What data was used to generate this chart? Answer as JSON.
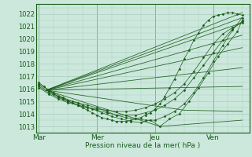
{
  "bg_color": "#cce8dc",
  "grid_color": "#aaccc0",
  "line_color": "#1a5c1a",
  "marker_color": "#1a5c1a",
  "xlabel": "Pression niveau de la mer( hPa )",
  "xtick_labels": [
    "Mar",
    "Mer",
    "Jeu",
    "Ven"
  ],
  "xtick_positions": [
    0,
    24,
    48,
    72
  ],
  "ylim": [
    1012.5,
    1022.8
  ],
  "yticks": [
    1013,
    1014,
    1015,
    1016,
    1017,
    1018,
    1019,
    1020,
    1021,
    1022
  ],
  "xlim": [
    -1,
    87
  ],
  "series": [
    {
      "x": [
        0,
        2,
        4,
        6,
        8,
        10,
        12,
        14,
        16,
        18,
        20,
        22,
        24,
        26,
        28,
        30,
        32,
        34,
        36,
        38,
        40,
        42,
        44,
        46,
        48,
        50,
        52,
        54,
        56,
        58,
        60,
        62,
        64,
        66,
        68,
        70,
        72,
        74,
        76,
        78,
        80,
        82,
        84
      ],
      "y": [
        1016.5,
        1016.2,
        1015.9,
        1015.6,
        1015.4,
        1015.2,
        1015.0,
        1014.9,
        1014.7,
        1014.5,
        1014.3,
        1014.1,
        1013.9,
        1013.7,
        1013.6,
        1013.5,
        1013.4,
        1013.4,
        1013.4,
        1013.5,
        1013.6,
        1013.7,
        1013.9,
        1014.1,
        1014.4,
        1014.8,
        1015.4,
        1016.1,
        1016.8,
        1017.6,
        1018.4,
        1019.1,
        1019.9,
        1020.5,
        1021.1,
        1021.5,
        1021.8,
        1021.9,
        1022.0,
        1022.1,
        1022.1,
        1022.0,
        1021.9
      ],
      "style": "dotted_marker"
    },
    {
      "x": [
        0,
        6,
        10,
        14,
        18,
        22,
        26,
        30,
        34,
        38,
        42,
        46,
        50,
        54,
        58,
        62,
        66,
        70,
        74,
        78,
        82,
        84
      ],
      "y": [
        1016.4,
        1015.7,
        1015.3,
        1015.0,
        1014.7,
        1014.4,
        1014.1,
        1013.8,
        1013.6,
        1013.4,
        1013.3,
        1013.5,
        1013.0,
        1013.6,
        1014.0,
        1015.0,
        1016.1,
        1017.3,
        1018.6,
        1019.6,
        1020.6,
        1021.5
      ],
      "style": "dotted_marker"
    },
    {
      "x": [
        0,
        4,
        8,
        12,
        16,
        20,
        24,
        28,
        32,
        36,
        40,
        44,
        48,
        52,
        56,
        60,
        64,
        68,
        72,
        76,
        80,
        84
      ],
      "y": [
        1016.3,
        1015.8,
        1015.4,
        1015.1,
        1014.9,
        1014.7,
        1014.5,
        1014.2,
        1013.9,
        1013.7,
        1013.6,
        1013.5,
        1013.5,
        1013.8,
        1014.2,
        1014.8,
        1015.7,
        1016.9,
        1018.2,
        1019.5,
        1020.7,
        1021.7
      ],
      "style": "dotted_marker"
    },
    {
      "x": [
        0,
        4,
        8,
        12,
        16,
        20,
        24,
        28,
        32,
        36,
        40,
        44,
        48,
        52,
        56,
        60,
        64,
        68,
        72,
        76,
        80,
        84
      ],
      "y": [
        1016.2,
        1015.7,
        1015.3,
        1015.0,
        1014.7,
        1014.5,
        1014.3,
        1014.1,
        1013.9,
        1013.9,
        1013.9,
        1014.1,
        1014.3,
        1014.7,
        1015.2,
        1015.9,
        1016.9,
        1017.9,
        1018.9,
        1019.9,
        1020.8,
        1021.4
      ],
      "style": "dotted_marker"
    },
    {
      "x": [
        0,
        4,
        8,
        12,
        16,
        20,
        24,
        28,
        32,
        36,
        40,
        44,
        48,
        52,
        56,
        60,
        64,
        68,
        72,
        76,
        80,
        84
      ],
      "y": [
        1016.1,
        1015.6,
        1015.2,
        1014.9,
        1014.7,
        1014.5,
        1014.4,
        1014.3,
        1014.2,
        1014.2,
        1014.3,
        1014.5,
        1014.8,
        1015.2,
        1015.7,
        1016.4,
        1017.4,
        1018.5,
        1019.6,
        1020.4,
        1020.9,
        1021.3
      ],
      "style": "dotted_marker"
    },
    {
      "x": [
        3,
        84
      ],
      "y": [
        1015.9,
        1022.1
      ],
      "style": "straight"
    },
    {
      "x": [
        3,
        84
      ],
      "y": [
        1015.9,
        1021.7
      ],
      "style": "straight"
    },
    {
      "x": [
        3,
        84
      ],
      "y": [
        1015.9,
        1021.3
      ],
      "style": "straight"
    },
    {
      "x": [
        3,
        84
      ],
      "y": [
        1015.9,
        1020.3
      ],
      "style": "straight"
    },
    {
      "x": [
        3,
        84
      ],
      "y": [
        1015.9,
        1019.3
      ],
      "style": "straight"
    },
    {
      "x": [
        3,
        84
      ],
      "y": [
        1015.9,
        1017.7
      ],
      "style": "straight"
    },
    {
      "x": [
        3,
        84
      ],
      "y": [
        1015.9,
        1016.2
      ],
      "style": "straight"
    },
    {
      "x": [
        3,
        60,
        84
      ],
      "y": [
        1015.9,
        1014.3,
        1014.2
      ],
      "style": "straight"
    },
    {
      "x": [
        3,
        50,
        84
      ],
      "y": [
        1015.9,
        1013.0,
        1013.5
      ],
      "style": "straight"
    }
  ]
}
